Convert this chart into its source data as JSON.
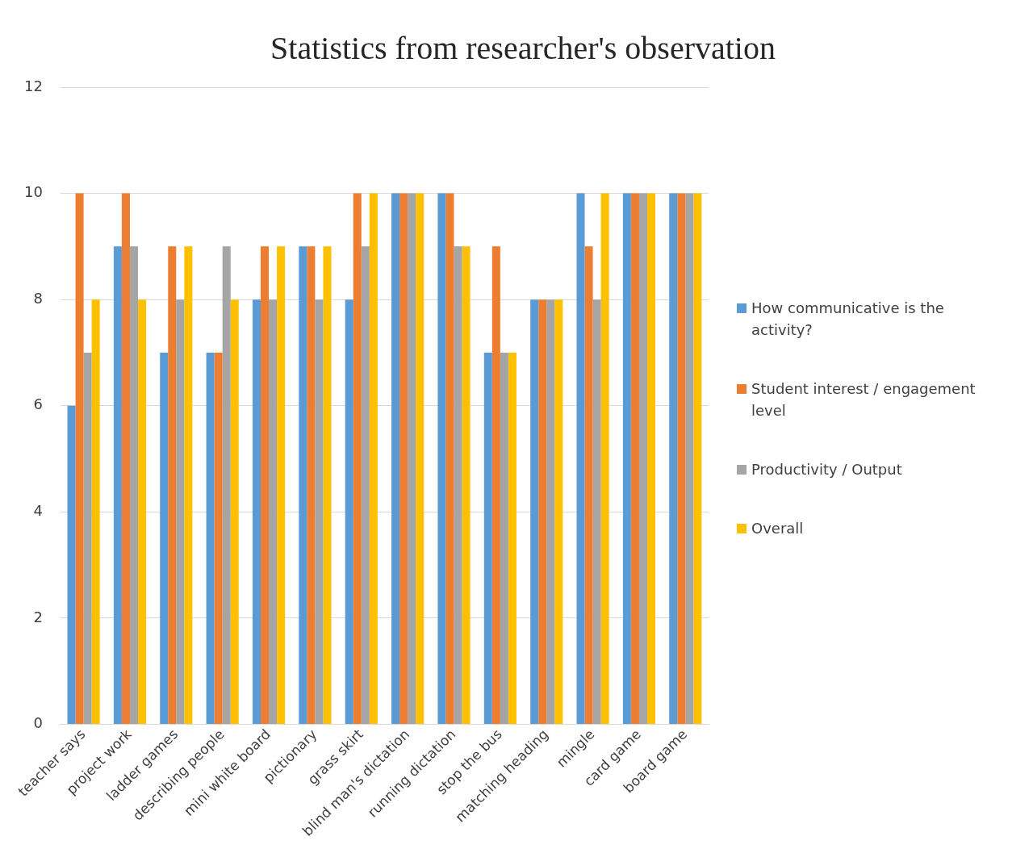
{
  "chart_data": {
    "type": "bar",
    "title": "Statistics from researcher's observation",
    "categories": [
      "teacher says",
      "project work",
      "ladder games",
      "describing people",
      "mini white board",
      "pictionary",
      "grass skirt",
      "blind man's dictation",
      "running dictation",
      "stop the bus",
      "matching heading",
      "mingle",
      "card game",
      "board game"
    ],
    "series": [
      {
        "name": "How communicative is the activity?",
        "color": "#5b9bd5",
        "values": [
          6,
          9,
          7,
          7,
          8,
          9,
          8,
          10,
          10,
          7,
          8,
          10,
          10,
          10
        ]
      },
      {
        "name": "Student interest / engagement level",
        "color": "#ed7d31",
        "values": [
          10,
          10,
          9,
          7,
          9,
          9,
          10,
          10,
          10,
          9,
          8,
          9,
          10,
          10
        ]
      },
      {
        "name": "Productivity / Output",
        "color": "#a5a5a5",
        "values": [
          7,
          9,
          8,
          9,
          8,
          8,
          9,
          10,
          9,
          7,
          8,
          8,
          10,
          10
        ]
      },
      {
        "name": "Overall",
        "color": "#ffc000",
        "values": [
          8,
          8,
          9,
          8,
          9,
          9,
          10,
          10,
          9,
          7,
          8,
          10,
          10,
          10
        ]
      }
    ],
    "ylim": [
      0,
      12
    ],
    "yticks": [
      0,
      2,
      4,
      6,
      8,
      10,
      12
    ],
    "grid": "y",
    "legend": "right"
  }
}
